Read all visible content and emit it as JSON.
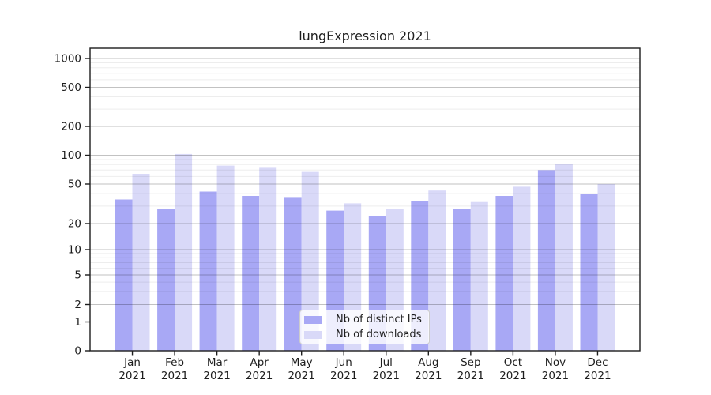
{
  "chart_data": {
    "type": "bar",
    "title": "lungExpression 2021",
    "x": [
      "Jan 2021",
      "Feb 2021",
      "Mar 2021",
      "Apr 2021",
      "May 2021",
      "Jun 2021",
      "Jul 2021",
      "Aug 2021",
      "Sep 2021",
      "Oct 2021",
      "Nov 2021",
      "Dec 2021"
    ],
    "series": [
      {
        "name": "Nb of distinct IPs",
        "color": "#a8a8f5",
        "values": [
          35,
          28,
          42,
          38,
          37,
          27,
          24,
          34,
          28,
          38,
          70,
          40
        ]
      },
      {
        "name": "Nb of downloads",
        "color": "#d9d9f8",
        "values": [
          64,
          103,
          78,
          74,
          67,
          32,
          28,
          43,
          33,
          47,
          82,
          50
        ]
      }
    ],
    "yscale": "symlog",
    "yticks": [
      0,
      1,
      2,
      5,
      10,
      20,
      50,
      100,
      200,
      500,
      1000
    ],
    "yticks_minor": [
      3,
      4,
      6,
      7,
      8,
      9,
      30,
      40,
      60,
      70,
      80,
      90,
      300,
      400,
      600,
      700,
      800,
      900
    ],
    "ylim": [
      0,
      1300
    ],
    "grid": true,
    "legend_position": "lower center",
    "colors": {
      "axis": "#1d1d1d",
      "grid_major": "#c4c4c4",
      "grid_minor": "#ededed",
      "background": "#ffffff"
    }
  }
}
